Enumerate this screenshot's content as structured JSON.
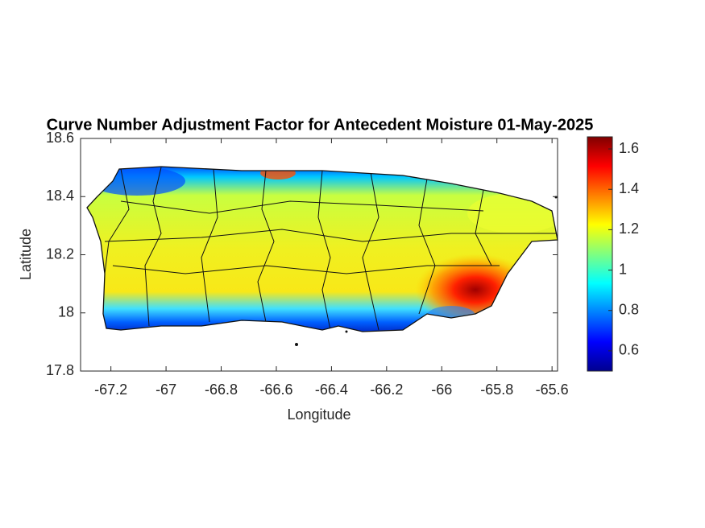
{
  "chart_data": {
    "type": "map",
    "title": "Curve Number Adjustment Factor for Antecedent Moisture 01-May-2025",
    "x_label": "Longitude",
    "y_label": "Latitude",
    "xlim": [
      -67.31,
      -65.58
    ],
    "ylim": [
      17.8,
      18.6
    ],
    "xticks": [
      -67.2,
      -67,
      -66.8,
      -66.6,
      -66.4,
      -66.2,
      -66,
      -65.8,
      -65.6
    ],
    "yticks": [
      17.8,
      18,
      18.2,
      18.4,
      18.6
    ],
    "colorbar": {
      "colormap": "jet",
      "clim": [
        0.5,
        1.66
      ],
      "ticks": [
        0.6,
        0.8,
        1,
        1.2,
        1.4,
        1.6
      ]
    }
  }
}
